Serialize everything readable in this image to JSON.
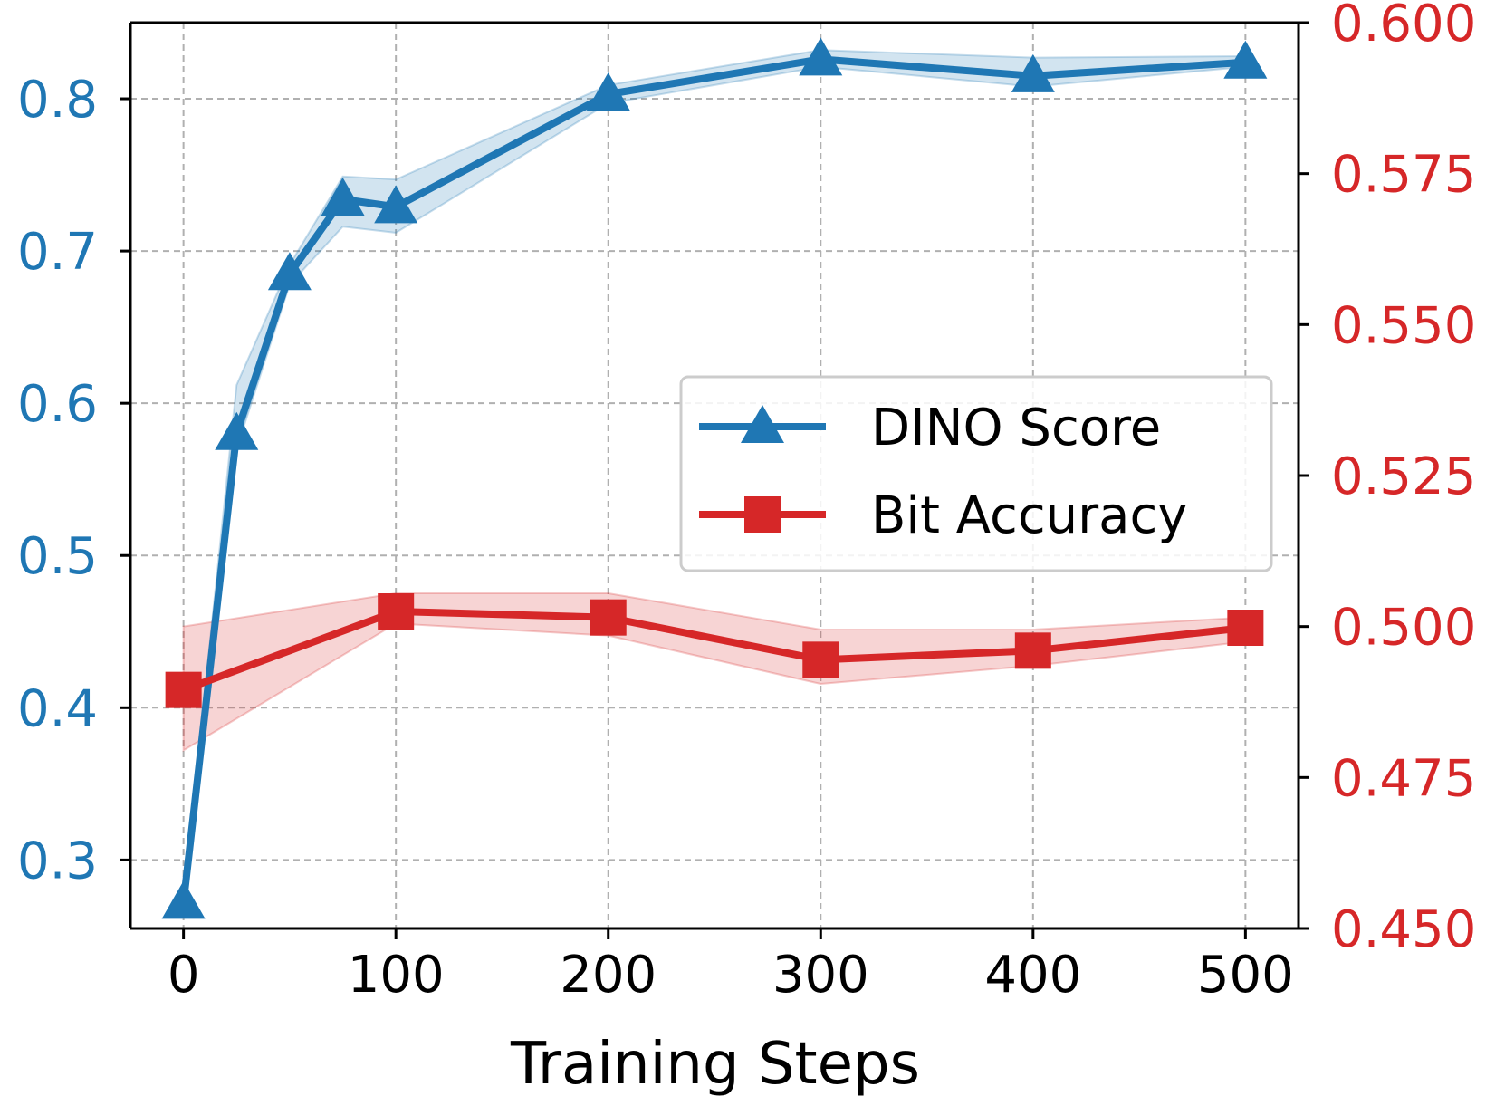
{
  "chart_data": {
    "type": "line",
    "xlabel": "Training Steps",
    "x_ticks": [
      0,
      100,
      200,
      300,
      400,
      500
    ],
    "xlim": [
      -25,
      525
    ],
    "grid": true,
    "legend_position": "center-right",
    "left_axis": {
      "ylim": [
        0.255,
        0.85
      ],
      "ticks": [
        0.3,
        0.4,
        0.5,
        0.6,
        0.7,
        0.8
      ],
      "tick_labels": [
        "0.3",
        "0.4",
        "0.5",
        "0.6",
        "0.7",
        "0.8"
      ],
      "color": "#1f77b4"
    },
    "right_axis": {
      "ylim": [
        0.45,
        0.6
      ],
      "ticks": [
        0.45,
        0.475,
        0.5,
        0.525,
        0.55,
        0.575,
        0.6
      ],
      "tick_labels": [
        "0.450",
        "0.475",
        "0.500",
        "0.525",
        "0.550",
        "0.575",
        "0.600"
      ],
      "color": "#d62728"
    },
    "series": [
      {
        "name": "DINO Score",
        "axis": "left",
        "color": "#1f77b4",
        "marker": "triangle",
        "x": [
          0,
          25,
          50,
          75,
          100,
          200,
          300,
          400,
          500
        ],
        "y": [
          0.272,
          0.58,
          0.685,
          0.734,
          0.729,
          0.803,
          0.826,
          0.815,
          0.824
        ],
        "y_lower": [
          0.268,
          0.57,
          0.678,
          0.716,
          0.712,
          0.797,
          0.821,
          0.808,
          0.821
        ],
        "y_upper": [
          0.276,
          0.612,
          0.691,
          0.749,
          0.747,
          0.809,
          0.832,
          0.827,
          0.828
        ]
      },
      {
        "name": "Bit Accuracy",
        "axis": "right",
        "color": "#d62728",
        "marker": "square",
        "x": [
          0,
          100,
          200,
          300,
          400,
          500
        ],
        "y": [
          0.4895,
          0.5025,
          0.5015,
          0.4945,
          0.496,
          0.4998
        ],
        "y_lower": [
          0.4795,
          0.5005,
          0.4985,
          0.4905,
          0.4935,
          0.4975
        ],
        "y_upper": [
          0.5,
          0.5055,
          0.5055,
          0.4995,
          0.4995,
          0.5015
        ]
      }
    ]
  }
}
